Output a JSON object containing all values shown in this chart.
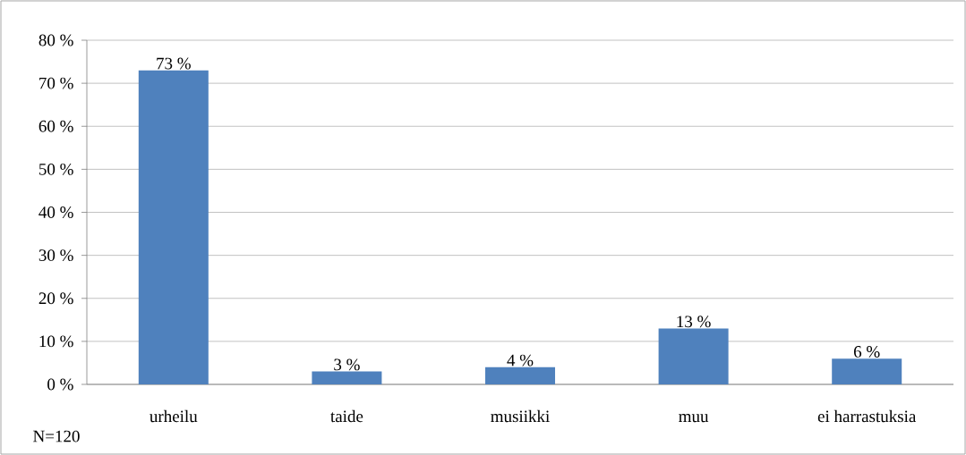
{
  "chart_data": {
    "type": "bar",
    "categories": [
      "urheilu",
      "taide",
      "musiikki",
      "muu",
      "ei harrastuksia"
    ],
    "values": [
      73,
      3,
      4,
      13,
      6
    ],
    "value_labels": [
      "73 %",
      "3 %",
      "4 %",
      "13 %",
      "6 %"
    ],
    "color": "#4f81bd",
    "ylim": [
      0,
      80
    ],
    "yticks": [
      {
        "value": 0,
        "label": "0 %"
      },
      {
        "value": 10,
        "label": "10 %"
      },
      {
        "value": 20,
        "label": "20 %"
      },
      {
        "value": 30,
        "label": "30 %"
      },
      {
        "value": 40,
        "label": "40 %"
      },
      {
        "value": 50,
        "label": "50 %"
      },
      {
        "value": 60,
        "label": "60 %"
      },
      {
        "value": 70,
        "label": "70 %"
      },
      {
        "value": 80,
        "label": "80 %"
      }
    ],
    "grid": "y",
    "annotations": [
      "N=120"
    ]
  }
}
